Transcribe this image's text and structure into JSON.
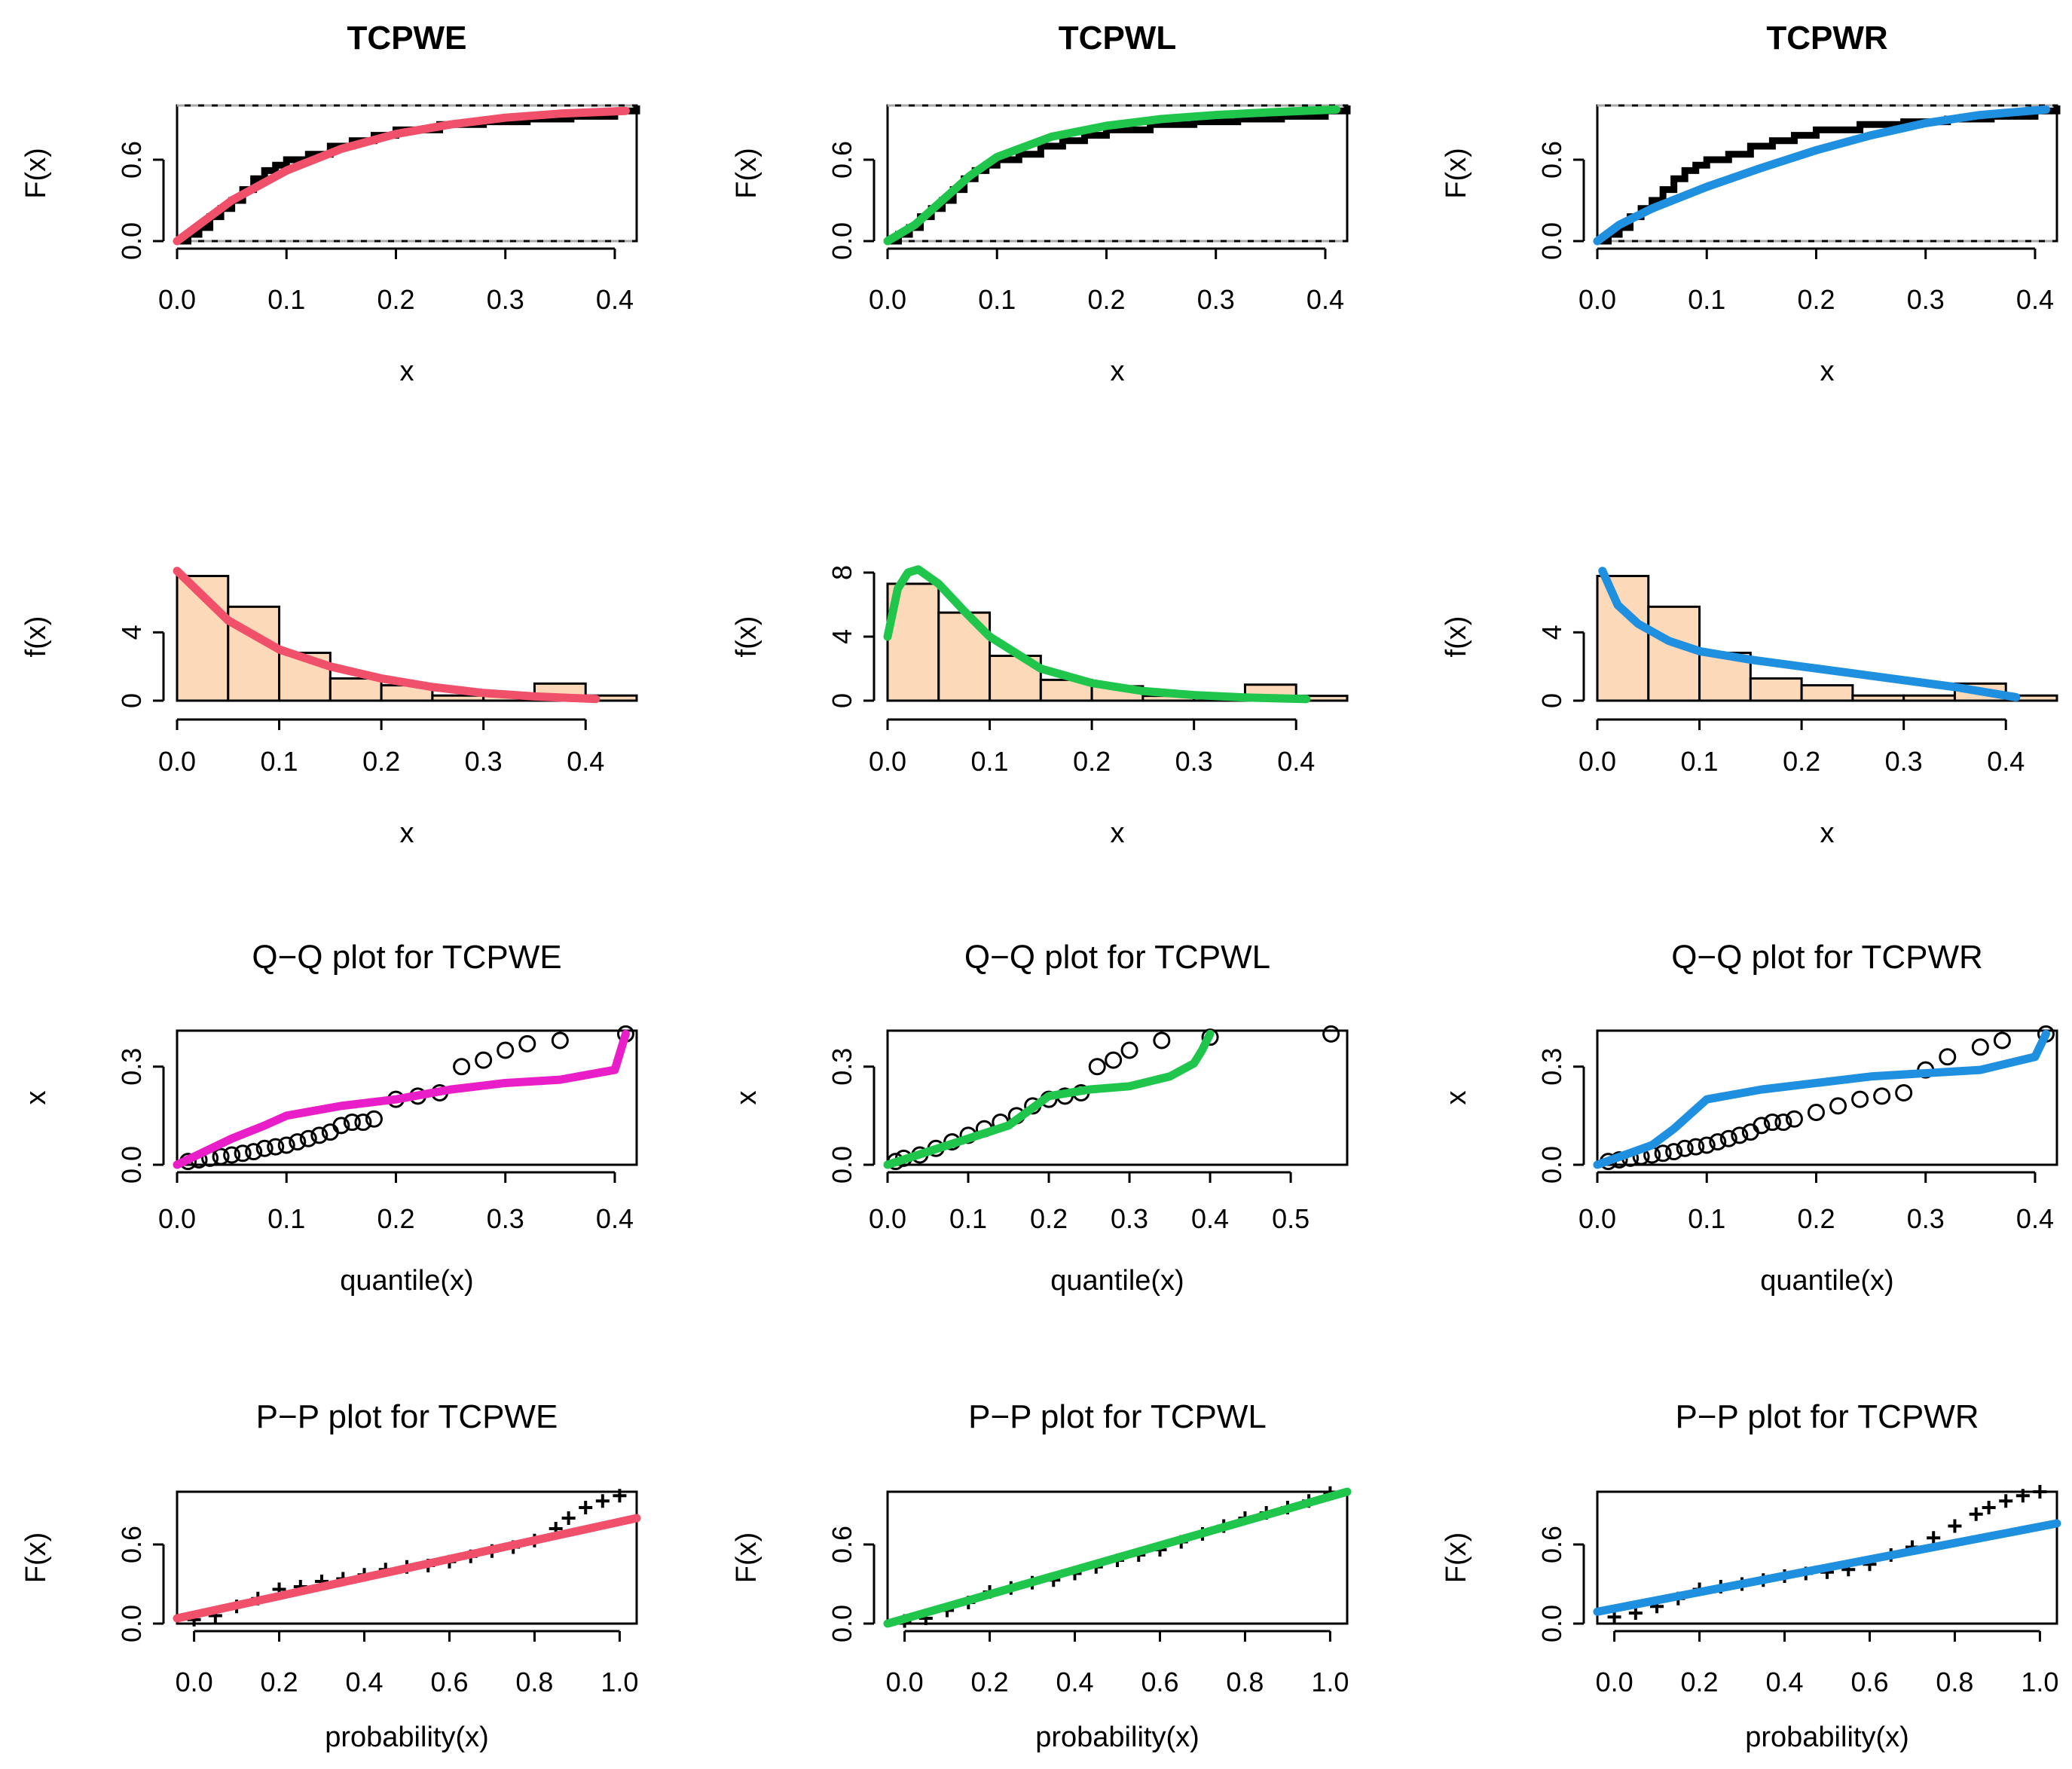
{
  "chart_data": [
    {
      "id": "cdf-tcpwe",
      "type": "line",
      "title": "TCPWE",
      "xlabel": "x",
      "ylabel": "F(x)",
      "xticks": [
        "0.0",
        "0.1",
        "0.2",
        "0.3",
        "0.4"
      ],
      "yticks": [
        "0.0",
        "0.6"
      ],
      "xlim": [
        0,
        0.42
      ],
      "ylim": [
        0,
        1
      ],
      "color": "#f0506a",
      "empirical": {
        "x": [
          0,
          0.01,
          0.02,
          0.03,
          0.04,
          0.05,
          0.06,
          0.07,
          0.08,
          0.09,
          0.1,
          0.12,
          0.14,
          0.16,
          0.18,
          0.2,
          0.24,
          0.28,
          0.32,
          0.36,
          0.4,
          0.42
        ],
        "y": [
          0,
          0.05,
          0.1,
          0.18,
          0.24,
          0.3,
          0.38,
          0.46,
          0.52,
          0.56,
          0.6,
          0.64,
          0.7,
          0.74,
          0.78,
          0.82,
          0.86,
          0.88,
          0.9,
          0.92,
          0.96,
          1
        ]
      },
      "fitted": {
        "x": [
          0,
          0.05,
          0.1,
          0.15,
          0.2,
          0.25,
          0.3,
          0.35,
          0.41
        ],
        "y": [
          0,
          0.3,
          0.52,
          0.68,
          0.79,
          0.86,
          0.91,
          0.94,
          0.96
        ]
      }
    },
    {
      "id": "cdf-tcpwl",
      "type": "line",
      "title": "TCPWL",
      "xlabel": "x",
      "ylabel": "F(x)",
      "xticks": [
        "0.0",
        "0.1",
        "0.2",
        "0.3",
        "0.4"
      ],
      "yticks": [
        "0.0",
        "0.6"
      ],
      "xlim": [
        0,
        0.42
      ],
      "ylim": [
        0,
        1
      ],
      "color": "#1fc64b",
      "empirical": {
        "x": [
          0,
          0.01,
          0.02,
          0.03,
          0.04,
          0.05,
          0.06,
          0.07,
          0.08,
          0.09,
          0.1,
          0.12,
          0.14,
          0.16,
          0.18,
          0.2,
          0.24,
          0.28,
          0.32,
          0.36,
          0.4,
          0.42
        ],
        "y": [
          0,
          0.05,
          0.1,
          0.18,
          0.24,
          0.3,
          0.38,
          0.46,
          0.52,
          0.56,
          0.6,
          0.64,
          0.7,
          0.74,
          0.78,
          0.82,
          0.86,
          0.88,
          0.9,
          0.92,
          0.96,
          1
        ]
      },
      "fitted": {
        "x": [
          0,
          0.025,
          0.05,
          0.075,
          0.1,
          0.15,
          0.2,
          0.25,
          0.3,
          0.35,
          0.41
        ],
        "y": [
          0,
          0.12,
          0.3,
          0.48,
          0.62,
          0.77,
          0.85,
          0.9,
          0.93,
          0.95,
          0.97
        ]
      }
    },
    {
      "id": "cdf-tcpwr",
      "type": "line",
      "title": "TCPWR",
      "xlabel": "x",
      "ylabel": "F(x)",
      "xticks": [
        "0.0",
        "0.1",
        "0.2",
        "0.3",
        "0.4"
      ],
      "yticks": [
        "0.0",
        "0.6"
      ],
      "xlim": [
        0,
        0.42
      ],
      "ylim": [
        0,
        1
      ],
      "color": "#1f8fe0",
      "empirical": {
        "x": [
          0,
          0.01,
          0.02,
          0.03,
          0.04,
          0.05,
          0.06,
          0.07,
          0.08,
          0.09,
          0.1,
          0.12,
          0.14,
          0.16,
          0.18,
          0.2,
          0.24,
          0.28,
          0.32,
          0.36,
          0.4,
          0.42
        ],
        "y": [
          0,
          0.05,
          0.1,
          0.18,
          0.24,
          0.3,
          0.38,
          0.46,
          0.52,
          0.56,
          0.6,
          0.64,
          0.7,
          0.74,
          0.78,
          0.82,
          0.86,
          0.88,
          0.9,
          0.92,
          0.96,
          1
        ]
      },
      "fitted": {
        "x": [
          0,
          0.02,
          0.05,
          0.1,
          0.15,
          0.2,
          0.25,
          0.3,
          0.35,
          0.41
        ],
        "y": [
          0,
          0.12,
          0.24,
          0.4,
          0.54,
          0.67,
          0.78,
          0.87,
          0.93,
          0.97
        ]
      }
    },
    {
      "id": "pdf-tcpwe",
      "type": "bar",
      "xlabel": "x",
      "ylabel": "f(x)",
      "xticks": [
        "0.0",
        "0.1",
        "0.2",
        "0.3",
        "0.4"
      ],
      "yticks": [
        "0",
        "4"
      ],
      "xlim": [
        0,
        0.45
      ],
      "ylim": [
        0,
        7.5
      ],
      "color": "#f0506a",
      "bar_color": "#fcd9b8",
      "bins": [
        0,
        0.05,
        0.1,
        0.15,
        0.2,
        0.25,
        0.3,
        0.35,
        0.4,
        0.45
      ],
      "counts": [
        7.3,
        5.5,
        2.8,
        1.3,
        0.9,
        0.3,
        0.3,
        1.0,
        0.3
      ],
      "fitted": {
        "x": [
          0,
          0.05,
          0.1,
          0.15,
          0.2,
          0.25,
          0.3,
          0.35,
          0.41
        ],
        "y": [
          7.6,
          4.7,
          3.0,
          2.0,
          1.3,
          0.8,
          0.45,
          0.25,
          0.1
        ]
      }
    },
    {
      "id": "pdf-tcpwl",
      "type": "bar",
      "xlabel": "x",
      "ylabel": "f(x)",
      "xticks": [
        "0.0",
        "0.1",
        "0.2",
        "0.3",
        "0.4"
      ],
      "yticks": [
        "0",
        "4",
        "8"
      ],
      "xlim": [
        0,
        0.45
      ],
      "ylim": [
        0,
        8
      ],
      "color": "#1fc64b",
      "bar_color": "#fcd9b8",
      "bins": [
        0,
        0.05,
        0.1,
        0.15,
        0.2,
        0.25,
        0.3,
        0.35,
        0.4,
        0.45
      ],
      "counts": [
        7.3,
        5.5,
        2.8,
        1.3,
        0.9,
        0.3,
        0.3,
        1.0,
        0.3
      ],
      "fitted": {
        "x": [
          0,
          0.01,
          0.02,
          0.03,
          0.05,
          0.075,
          0.1,
          0.15,
          0.2,
          0.25,
          0.3,
          0.35,
          0.41
        ],
        "y": [
          4.0,
          7.0,
          8.0,
          8.2,
          7.3,
          5.6,
          4.0,
          2.0,
          1.1,
          0.6,
          0.35,
          0.2,
          0.1
        ]
      }
    },
    {
      "id": "pdf-tcpwr",
      "type": "bar",
      "xlabel": "x",
      "ylabel": "f(x)",
      "xticks": [
        "0.0",
        "0.1",
        "0.2",
        "0.3",
        "0.4"
      ],
      "yticks": [
        "0",
        "4"
      ],
      "xlim": [
        0,
        0.45
      ],
      "ylim": [
        0,
        7.5
      ],
      "color": "#1f8fe0",
      "bar_color": "#fcd9b8",
      "bins": [
        0,
        0.05,
        0.1,
        0.15,
        0.2,
        0.25,
        0.3,
        0.35,
        0.4,
        0.45
      ],
      "counts": [
        7.3,
        5.5,
        2.8,
        1.3,
        0.9,
        0.3,
        0.3,
        1.0,
        0.3
      ],
      "fitted": {
        "x": [
          0.005,
          0.02,
          0.04,
          0.07,
          0.1,
          0.15,
          0.2,
          0.25,
          0.3,
          0.35,
          0.41
        ],
        "y": [
          7.6,
          5.6,
          4.5,
          3.5,
          2.9,
          2.4,
          2.0,
          1.6,
          1.2,
          0.8,
          0.2
        ]
      }
    },
    {
      "id": "qq-tcpwe",
      "type": "scatter",
      "title": "Q−Q plot for  TCPWE",
      "xlabel": "quantile(x)",
      "ylabel": "x",
      "xticks": [
        "0.0",
        "0.1",
        "0.2",
        "0.3",
        "0.4"
      ],
      "yticks": [
        "0.0",
        "0.3"
      ],
      "xlim": [
        0,
        0.42
      ],
      "ylim": [
        0,
        0.41
      ],
      "color": "#e91ec8",
      "points": {
        "x": [
          0.01,
          0.02,
          0.03,
          0.04,
          0.05,
          0.06,
          0.07,
          0.08,
          0.09,
          0.1,
          0.11,
          0.12,
          0.13,
          0.14,
          0.15,
          0.16,
          0.17,
          0.18,
          0.2,
          0.22,
          0.24,
          0.26,
          0.28,
          0.3,
          0.32,
          0.35,
          0.41
        ],
        "y": [
          0.01,
          0.015,
          0.02,
          0.025,
          0.03,
          0.035,
          0.04,
          0.05,
          0.055,
          0.06,
          0.07,
          0.08,
          0.09,
          0.1,
          0.12,
          0.13,
          0.13,
          0.14,
          0.2,
          0.21,
          0.22,
          0.3,
          0.32,
          0.35,
          0.37,
          0.38,
          0.4
        ]
      },
      "line": {
        "x": [
          0,
          0.05,
          0.08,
          0.1,
          0.15,
          0.2,
          0.25,
          0.3,
          0.35,
          0.4,
          0.41
        ],
        "y": [
          0,
          0.08,
          0.12,
          0.15,
          0.18,
          0.2,
          0.23,
          0.25,
          0.26,
          0.29,
          0.4
        ]
      }
    },
    {
      "id": "qq-tcpwl",
      "type": "scatter",
      "title": "Q−Q plot for  TCPWL",
      "xlabel": "quantile(x)",
      "ylabel": "x",
      "xticks": [
        "0.0",
        "0.1",
        "0.2",
        "0.3",
        "0.4",
        "0.5"
      ],
      "yticks": [
        "0.0",
        "0.3"
      ],
      "xlim": [
        0,
        0.57
      ],
      "ylim": [
        0,
        0.41
      ],
      "color": "#1fc64b",
      "points": {
        "x": [
          0.01,
          0.02,
          0.04,
          0.06,
          0.08,
          0.1,
          0.12,
          0.14,
          0.16,
          0.18,
          0.2,
          0.22,
          0.24,
          0.26,
          0.28,
          0.3,
          0.34,
          0.4,
          0.55
        ],
        "y": [
          0.01,
          0.02,
          0.03,
          0.05,
          0.07,
          0.09,
          0.11,
          0.13,
          0.15,
          0.18,
          0.2,
          0.21,
          0.22,
          0.3,
          0.32,
          0.35,
          0.38,
          0.39,
          0.4
        ]
      },
      "line": {
        "x": [
          0,
          0.05,
          0.1,
          0.15,
          0.2,
          0.25,
          0.3,
          0.35,
          0.38,
          0.39,
          0.4
        ],
        "y": [
          0,
          0.04,
          0.08,
          0.12,
          0.21,
          0.23,
          0.24,
          0.27,
          0.31,
          0.35,
          0.4
        ]
      }
    },
    {
      "id": "qq-tcpwr",
      "type": "scatter",
      "title": "Q−Q plot for  TCPWR",
      "xlabel": "quantile(x)",
      "ylabel": "x",
      "xticks": [
        "0.0",
        "0.1",
        "0.2",
        "0.3",
        "0.4"
      ],
      "yticks": [
        "0.0",
        "0.3"
      ],
      "xlim": [
        0,
        0.42
      ],
      "ylim": [
        0,
        0.41
      ],
      "color": "#1f8fe0",
      "points": {
        "x": [
          0.01,
          0.02,
          0.03,
          0.04,
          0.05,
          0.06,
          0.07,
          0.08,
          0.09,
          0.1,
          0.11,
          0.12,
          0.13,
          0.14,
          0.15,
          0.16,
          0.17,
          0.18,
          0.2,
          0.22,
          0.24,
          0.26,
          0.28,
          0.3,
          0.32,
          0.35,
          0.37,
          0.41
        ],
        "y": [
          0.01,
          0.015,
          0.02,
          0.025,
          0.03,
          0.035,
          0.04,
          0.05,
          0.055,
          0.06,
          0.07,
          0.08,
          0.09,
          0.1,
          0.12,
          0.13,
          0.13,
          0.14,
          0.16,
          0.18,
          0.2,
          0.21,
          0.22,
          0.29,
          0.33,
          0.36,
          0.38,
          0.4
        ]
      },
      "line": {
        "x": [
          0,
          0.05,
          0.07,
          0.1,
          0.15,
          0.2,
          0.25,
          0.3,
          0.35,
          0.4,
          0.41
        ],
        "y": [
          0,
          0.06,
          0.11,
          0.2,
          0.23,
          0.25,
          0.27,
          0.28,
          0.29,
          0.33,
          0.4
        ]
      }
    },
    {
      "id": "pp-tcpwe",
      "type": "scatter",
      "title": "P−P plot for  TCPWE",
      "xlabel": "probability(x)",
      "ylabel": "F(x)",
      "xticks": [
        "0.0",
        "0.2",
        "0.4",
        "0.6",
        "0.8",
        "1.0"
      ],
      "yticks": [
        "0.0",
        "0.6"
      ],
      "xlim": [
        -0.04,
        1.04
      ],
      "ylim": [
        0,
        1
      ],
      "color": "#f0506a",
      "points": {
        "x": [
          0,
          0.05,
          0.1,
          0.15,
          0.2,
          0.25,
          0.3,
          0.35,
          0.4,
          0.45,
          0.5,
          0.55,
          0.6,
          0.65,
          0.7,
          0.75,
          0.8,
          0.85,
          0.88,
          0.92,
          0.96,
          1.0
        ],
        "y": [
          0.03,
          0.06,
          0.13,
          0.19,
          0.26,
          0.28,
          0.32,
          0.34,
          0.37,
          0.41,
          0.43,
          0.44,
          0.47,
          0.51,
          0.55,
          0.58,
          0.63,
          0.72,
          0.8,
          0.88,
          0.93,
          0.97
        ]
      },
      "line": {
        "x": [
          -0.04,
          1.04
        ],
        "y": [
          0.04,
          0.8
        ]
      }
    },
    {
      "id": "pp-tcpwl",
      "type": "scatter",
      "title": "P−P plot for  TCPWL",
      "xlabel": "probability(x)",
      "ylabel": "F(x)",
      "xticks": [
        "0.0",
        "0.2",
        "0.4",
        "0.6",
        "0.8",
        "1.0"
      ],
      "yticks": [
        "0.0",
        "0.6"
      ],
      "xlim": [
        -0.04,
        1.04
      ],
      "ylim": [
        0,
        1
      ],
      "color": "#1fc64b",
      "points": {
        "x": [
          0,
          0.05,
          0.1,
          0.15,
          0.2,
          0.25,
          0.3,
          0.35,
          0.4,
          0.45,
          0.5,
          0.55,
          0.6,
          0.65,
          0.7,
          0.75,
          0.8,
          0.85,
          0.9,
          0.95,
          1.0
        ],
        "y": [
          0.02,
          0.04,
          0.1,
          0.16,
          0.24,
          0.27,
          0.31,
          0.33,
          0.38,
          0.43,
          0.48,
          0.52,
          0.56,
          0.62,
          0.68,
          0.74,
          0.8,
          0.84,
          0.88,
          0.93,
          0.99
        ]
      },
      "line": {
        "x": [
          -0.04,
          1.04
        ],
        "y": [
          0.0,
          1.0
        ]
      }
    },
    {
      "id": "pp-tcpwr",
      "type": "scatter",
      "title": "P−P plot for  TCPWR",
      "xlabel": "probability(x)",
      "ylabel": "F(x)",
      "xticks": [
        "0.0",
        "0.2",
        "0.4",
        "0.6",
        "0.8",
        "1.0"
      ],
      "yticks": [
        "0.0",
        "0.6"
      ],
      "xlim": [
        -0.04,
        1.04
      ],
      "ylim": [
        0,
        1
      ],
      "color": "#1f8fe0",
      "points": {
        "x": [
          0,
          0.05,
          0.1,
          0.15,
          0.2,
          0.25,
          0.3,
          0.35,
          0.4,
          0.45,
          0.5,
          0.55,
          0.6,
          0.65,
          0.7,
          0.75,
          0.8,
          0.85,
          0.88,
          0.92,
          0.96,
          1.0
        ],
        "y": [
          0.05,
          0.08,
          0.13,
          0.19,
          0.26,
          0.28,
          0.3,
          0.33,
          0.36,
          0.38,
          0.39,
          0.41,
          0.45,
          0.52,
          0.58,
          0.65,
          0.74,
          0.83,
          0.88,
          0.93,
          0.97,
          1.0
        ]
      },
      "line": {
        "x": [
          -0.04,
          1.04
        ],
        "y": [
          0.09,
          0.76
        ]
      }
    }
  ]
}
